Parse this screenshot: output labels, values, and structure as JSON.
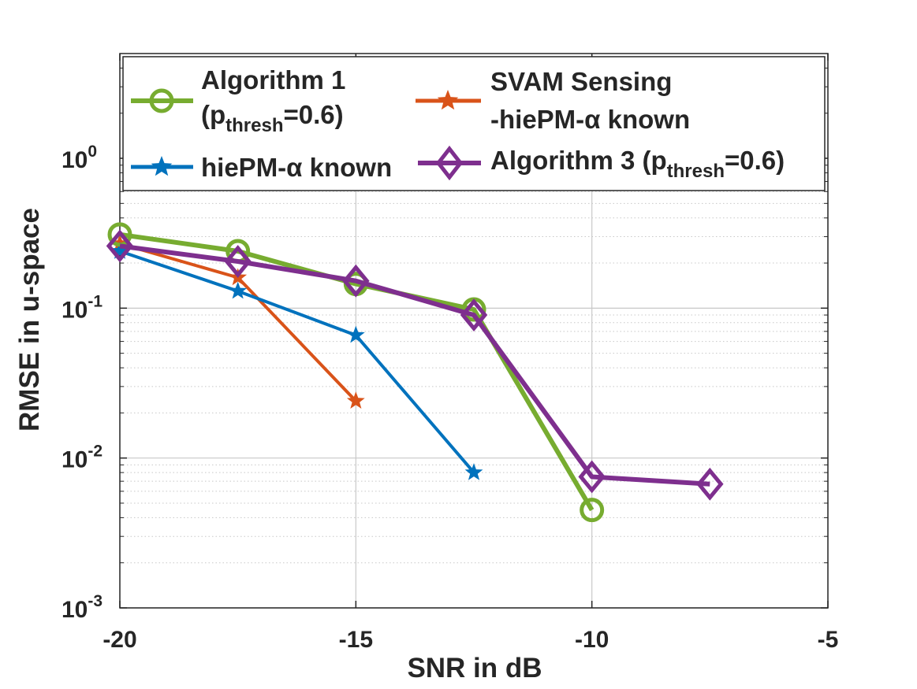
{
  "chart_data": {
    "type": "line",
    "title": "",
    "xlabel": "SNR in dB",
    "ylabel": "RMSE in u-space",
    "xlim": [
      -20,
      -5
    ],
    "ylim": [
      0.001,
      5
    ],
    "yscale": "log",
    "grid": true,
    "x_ticks": [
      {
        "value": -20,
        "label": "-20"
      },
      {
        "value": -15,
        "label": "-15"
      },
      {
        "value": -10,
        "label": "-10"
      },
      {
        "value": -5,
        "label": "-5"
      }
    ],
    "y_ticks": [
      {
        "value": 0.001,
        "base": "10",
        "exp": "-3"
      },
      {
        "value": 0.01,
        "base": "10",
        "exp": "-2"
      },
      {
        "value": 0.1,
        "base": "10",
        "exp": "-1"
      },
      {
        "value": 1,
        "base": "10",
        "exp": "0"
      }
    ],
    "legend_position": "top",
    "series": [
      {
        "name": "Algorithm 1 (p_thresh=0.6)",
        "color": "#77AC30",
        "marker": "circle",
        "x": [
          -20,
          -17.5,
          -15,
          -12.5,
          -10
        ],
        "y": [
          0.31,
          0.24,
          0.145,
          0.098,
          0.0045
        ]
      },
      {
        "name": "SVAM Sensing -hiePM-α known",
        "color": "#D95319",
        "marker": "star",
        "x": [
          -20,
          -17.5,
          -15
        ],
        "y": [
          0.27,
          0.16,
          0.024
        ]
      },
      {
        "name": "hiePM-α known",
        "color": "#0072BD",
        "marker": "star",
        "x": [
          -20,
          -17.5,
          -15,
          -12.5
        ],
        "y": [
          0.24,
          0.13,
          0.066,
          0.008
        ]
      },
      {
        "name": "Algorithm 3 (p_thresh=0.6)",
        "color": "#7E2F8E",
        "marker": "diamond",
        "x": [
          -20,
          -17.5,
          -15,
          -12.5,
          -10,
          -7.5
        ],
        "y": [
          0.26,
          0.205,
          0.152,
          0.09,
          0.0075,
          0.0067
        ]
      }
    ],
    "legend": [
      {
        "line1": "Algorithm 1",
        "line2_pre": "(p",
        "line2_sub": "thresh",
        "line2_post": "=0.6)"
      },
      {
        "line1": "SVAM Sensing",
        "line2": "-hiePM-α known"
      },
      {
        "line1": "hiePM-α known"
      },
      {
        "pre": "Algorithm 3 (p",
        "sub": "thresh",
        "post": "=0.6)"
      }
    ]
  }
}
